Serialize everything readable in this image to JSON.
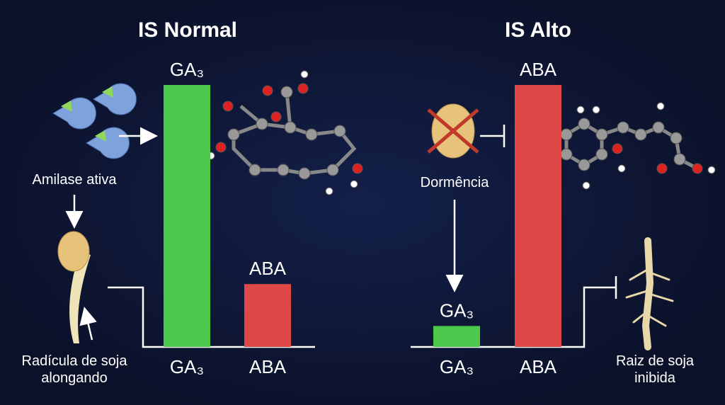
{
  "chart_data": [
    {
      "type": "bar",
      "title": "IS Normal",
      "categories": [
        "GA₃",
        "ABA"
      ],
      "values": [
        100,
        24
      ],
      "colors": [
        "#4cc94c",
        "#e04848"
      ],
      "ylim": [
        0,
        100
      ],
      "annotations": [
        "Amilase ativa",
        "Radícula de soja alongando"
      ]
    },
    {
      "type": "bar",
      "title": "IS Alto",
      "categories": [
        "GA₃",
        "ABA"
      ],
      "values": [
        8,
        100
      ],
      "colors": [
        "#4cc94c",
        "#e04848"
      ],
      "ylim": [
        0,
        100
      ],
      "annotations": [
        "Dormência",
        "Raiz de soja inibida"
      ]
    }
  ]
}
